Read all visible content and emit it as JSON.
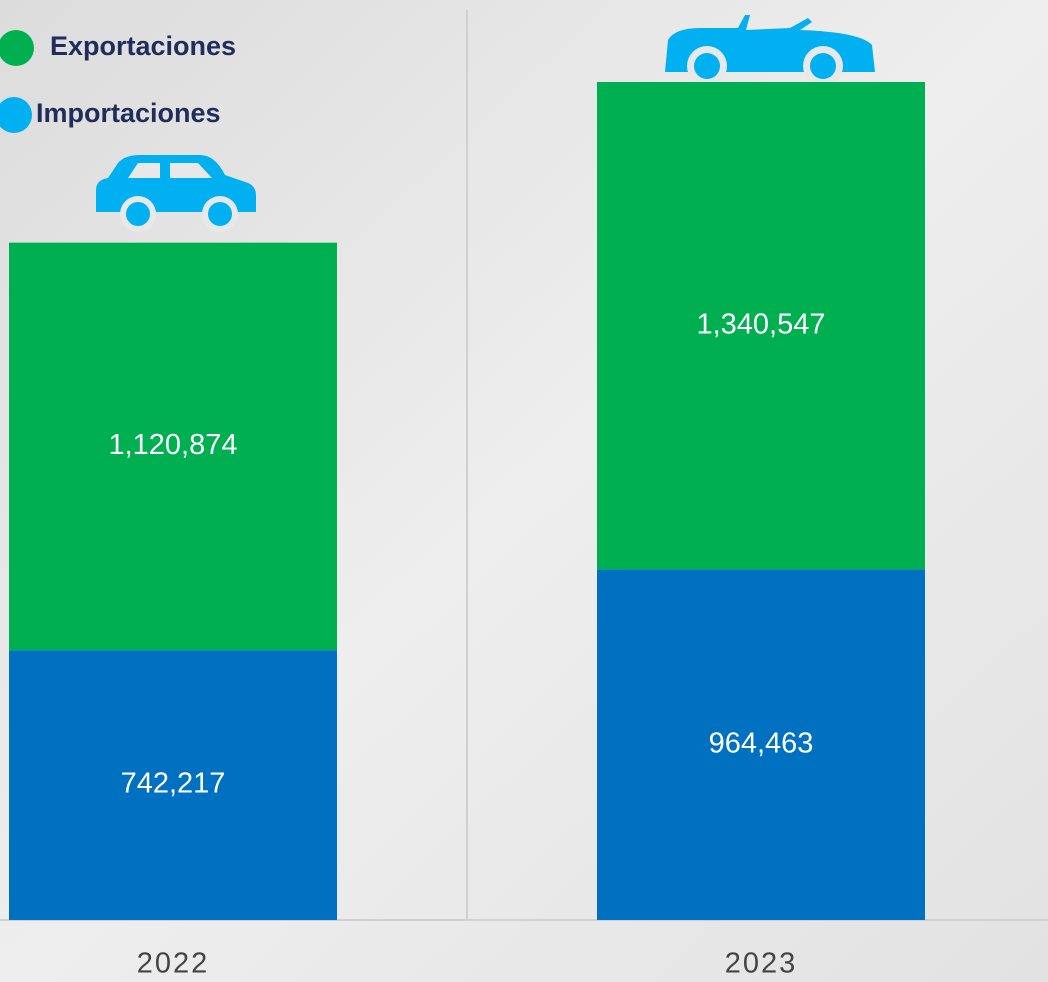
{
  "chart_data": {
    "type": "stacked-bar",
    "categories": [
      "2022",
      "2023"
    ],
    "series": [
      {
        "name": "Importaciones",
        "color": "#0070c0",
        "values": [
          742217,
          964463
        ],
        "value_labels": [
          "742,217",
          "964,463"
        ]
      },
      {
        "name": "Exportaciones",
        "color": "#00b050",
        "values": [
          1120874,
          1340547
        ],
        "value_labels": [
          "1,120,874",
          "1,340,547"
        ]
      }
    ]
  }
}
